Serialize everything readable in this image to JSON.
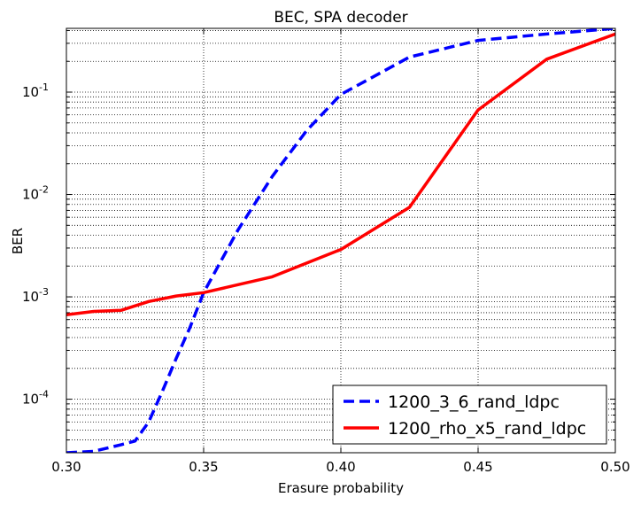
{
  "chart_data": {
    "type": "line",
    "title": "BEC, SPA decoder",
    "xlabel": "Erasure probability",
    "ylabel": "BER",
    "xlim": [
      0.3,
      0.5
    ],
    "ylim": [
      3e-05,
      0.42
    ],
    "yscale": "log",
    "grid": true,
    "legend_position": "lower-right",
    "x_ticks": [
      "0.30",
      "0.35",
      "0.40",
      "0.45",
      "0.50"
    ],
    "y_ticks": [
      {
        "base": "10",
        "exp": "-4",
        "value": 0.0001
      },
      {
        "base": "10",
        "exp": "-3",
        "value": 0.001
      },
      {
        "base": "10",
        "exp": "-2",
        "value": 0.01
      },
      {
        "base": "10",
        "exp": "-1",
        "value": 0.1
      }
    ],
    "series": [
      {
        "name": "1200_3_6_rand_ldpc",
        "color": "#0000ff",
        "style": "dashed",
        "x": [
          0.3,
          0.31,
          0.32,
          0.325,
          0.33,
          0.335,
          0.34,
          0.345,
          0.35,
          0.3625,
          0.375,
          0.3875,
          0.4,
          0.425,
          0.45,
          0.475,
          0.5
        ],
        "y": [
          3e-05,
          3.1e-05,
          3.6e-05,
          3.9e-05,
          6e-05,
          0.00012,
          0.00025,
          0.0005,
          0.0011,
          0.0045,
          0.015,
          0.042,
          0.095,
          0.22,
          0.32,
          0.37,
          0.42
        ]
      },
      {
        "name": "1200_rho_x5_rand_ldpc",
        "color": "#ff0000",
        "style": "solid",
        "x": [
          0.3,
          0.31,
          0.32,
          0.33,
          0.34,
          0.35,
          0.375,
          0.4,
          0.425,
          0.45,
          0.475,
          0.5
        ],
        "y": [
          0.00067,
          0.00072,
          0.00074,
          0.0009,
          0.00102,
          0.0011,
          0.00157,
          0.0029,
          0.0075,
          0.067,
          0.21,
          0.37
        ]
      }
    ]
  }
}
